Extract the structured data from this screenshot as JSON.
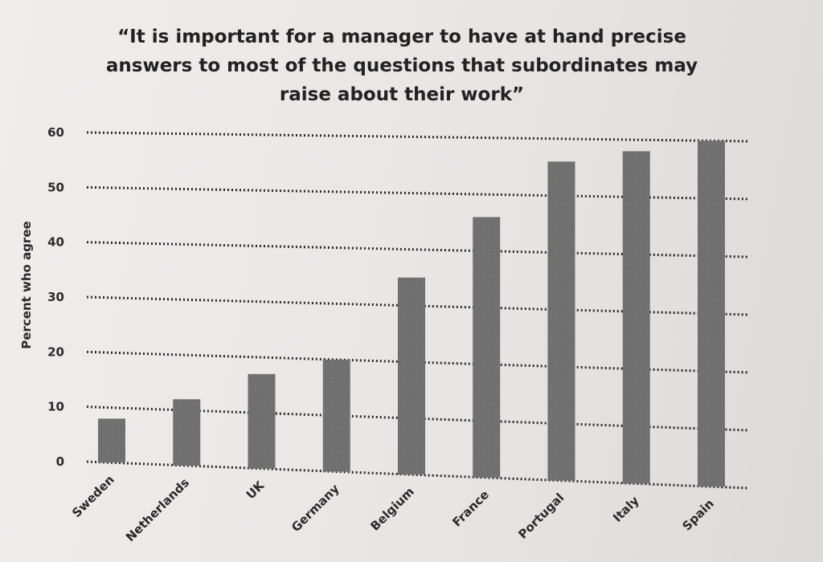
{
  "chart_data": {
    "type": "bar",
    "title": "“It is important for a manager to have at hand precise answers to most of the questions that subordinates may raise about their work”",
    "ylabel": "Percent who agree",
    "xlabel": "",
    "ylim": [
      0,
      60
    ],
    "yticks": [
      "0",
      "10",
      "20",
      "30",
      "40",
      "50",
      "60"
    ],
    "categories": [
      "Sweden",
      "Netherlands",
      "UK",
      "Germany",
      "Belgium",
      "France",
      "Portugal",
      "Italy",
      "Spain"
    ],
    "values": [
      8,
      12,
      17,
      20,
      35,
      46,
      56,
      58,
      60
    ],
    "grid": true,
    "bar_color": "#707070",
    "grid_color": "#2a2a2a"
  }
}
